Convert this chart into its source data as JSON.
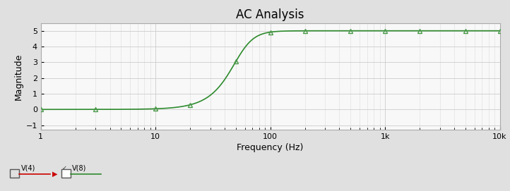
{
  "title": "AC Analysis",
  "xlabel": "Frequency (Hz)",
  "ylabel": "Magnitude",
  "fig_bg_color": "#e0e0e0",
  "plot_bg_color": "#f8f8f8",
  "line_color": "#2e8b2e",
  "marker_style": "^",
  "marker_color": "#4a9a4a",
  "marker_size": 5,
  "xlim_log": [
    1,
    10000
  ],
  "ylim": [
    -1.3,
    5.5
  ],
  "yticks": [
    -1,
    0,
    1,
    2,
    3,
    4,
    5
  ],
  "xtick_labels": [
    "1",
    "10",
    "100",
    "1k",
    "10k"
  ],
  "xtick_positions": [
    1,
    10,
    100,
    1000,
    10000
  ],
  "gain_inf": 5.0,
  "cutoff_freq": 55.0,
  "filter_order": 2.8,
  "marker_freqs": [
    1,
    3,
    10,
    20,
    50,
    100,
    200,
    500,
    1000,
    2000,
    5000,
    10000
  ],
  "legend_v4_color": "#cc0000",
  "legend_v8_color": "#2e8b2e",
  "title_fontsize": 12,
  "axis_label_fontsize": 9,
  "tick_fontsize": 8
}
